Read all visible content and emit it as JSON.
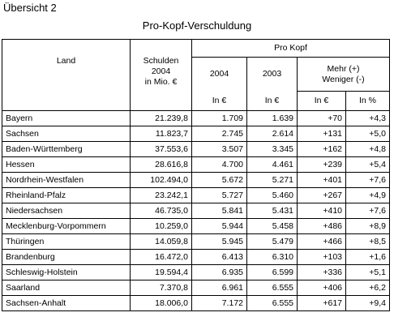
{
  "caption": "Übersicht 2",
  "title": "Pro-Kopf-Verschuldung",
  "headers": {
    "land": "Land",
    "schulden": [
      "Schulden",
      "2004",
      "in Mio. €"
    ],
    "pro_kopf": "Pro Kopf",
    "y2004": "2004",
    "y2003": "2003",
    "change": [
      "Mehr (+)",
      "Weniger (-)"
    ],
    "unit_2004": "In €",
    "unit_2003": "In €",
    "unit_change_abs": "In €",
    "unit_change_pct": "In %"
  },
  "rows": [
    {
      "land": "Bayern",
      "schulden": "21.239,8",
      "pk2004": "1.709",
      "pk2003": "1.639",
      "abs": "+70",
      "pct": "+4,3"
    },
    {
      "land": "Sachsen",
      "schulden": "11.823,7",
      "pk2004": "2.745",
      "pk2003": "2.614",
      "abs": "+131",
      "pct": "+5,0"
    },
    {
      "land": "Baden-Württemberg",
      "schulden": "37.553,6",
      "pk2004": "3.507",
      "pk2003": "3.345",
      "abs": "+162",
      "pct": "+4,8"
    },
    {
      "land": "Hessen",
      "schulden": "28.616,8",
      "pk2004": "4.700",
      "pk2003": "4.461",
      "abs": "+239",
      "pct": "+5,4"
    },
    {
      "land": "Nordrhein-Westfalen",
      "schulden": "102.494,0",
      "pk2004": "5.672",
      "pk2003": "5.271",
      "abs": "+401",
      "pct": "+7,6"
    },
    {
      "land": "Rheinland-Pfalz",
      "schulden": "23.242,1",
      "pk2004": "5.727",
      "pk2003": "5.460",
      "abs": "+267",
      "pct": "+4,9"
    },
    {
      "land": "Niedersachsen",
      "schulden": "46.735,0",
      "pk2004": "5.841",
      "pk2003": "5.431",
      "abs": "+410",
      "pct": "+7,6"
    },
    {
      "land": "Mecklenburg-Vorpommern",
      "schulden": "10.259,0",
      "pk2004": "5.944",
      "pk2003": "5.458",
      "abs": "+486",
      "pct": "+8,9"
    },
    {
      "land": "Thüringen",
      "schulden": "14.059,8",
      "pk2004": "5.945",
      "pk2003": "5.479",
      "abs": "+466",
      "pct": "+8,5"
    },
    {
      "land": "Brandenburg",
      "schulden": "16.472,0",
      "pk2004": "6.413",
      "pk2003": "6.310",
      "abs": "+103",
      "pct": "+1,6"
    },
    {
      "land": "Schleswig-Holstein",
      "schulden": "19.594,4",
      "pk2004": "6.935",
      "pk2003": "6.599",
      "abs": "+336",
      "pct": "+5,1"
    },
    {
      "land": "Saarland",
      "schulden": "7.370,8",
      "pk2004": "6.961",
      "pk2003": "6.555",
      "abs": "+406",
      "pct": "+6,2"
    },
    {
      "land": "Sachsen-Anhalt",
      "schulden": "18.006,0",
      "pk2004": "7.172",
      "pk2003": "6.555",
      "abs": "+617",
      "pct": "+9,4"
    }
  ]
}
